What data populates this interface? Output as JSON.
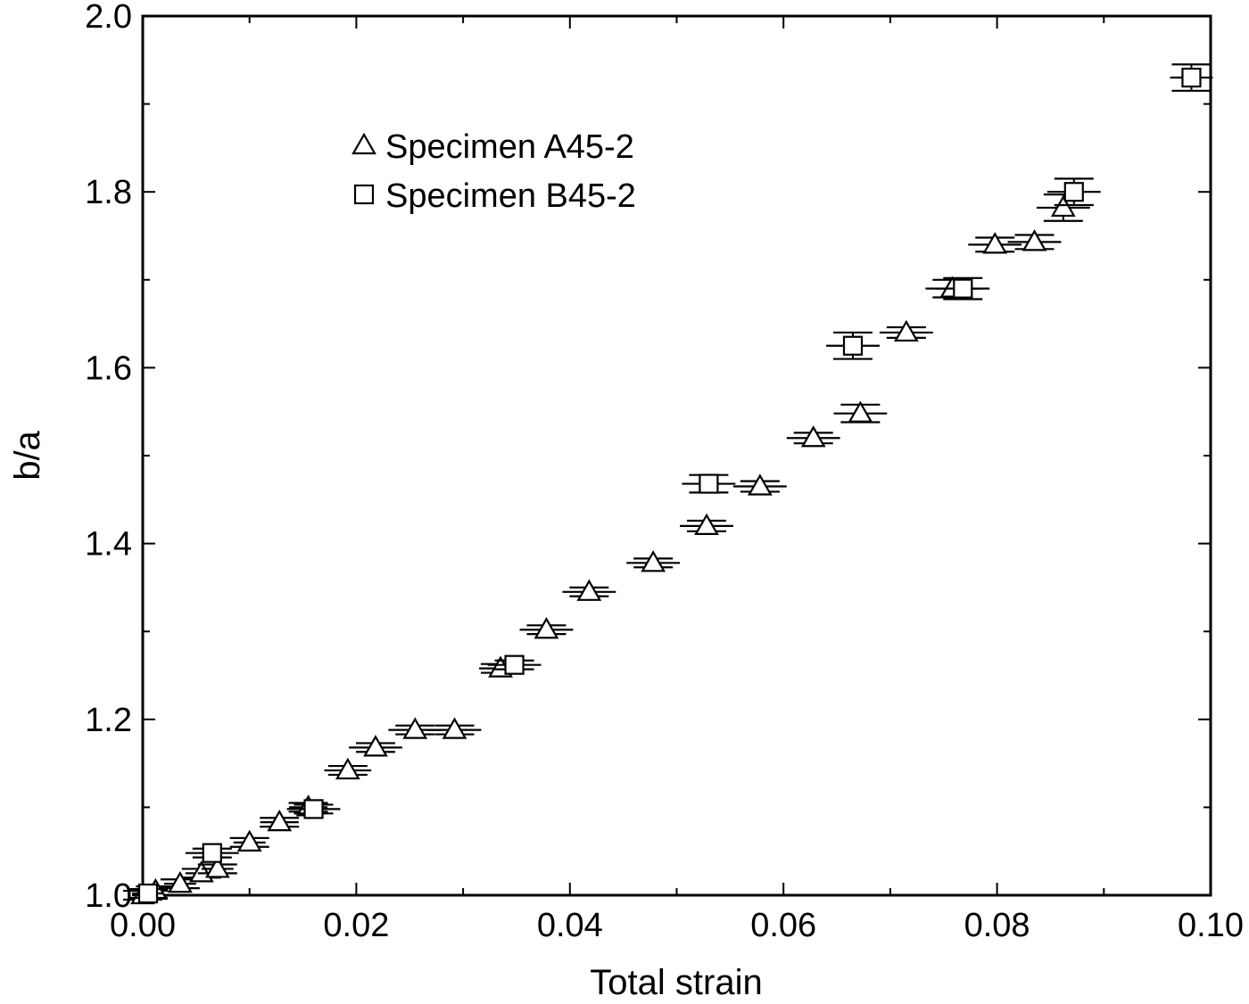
{
  "chart_data": {
    "type": "scatter",
    "title": "",
    "xlabel": "Total strain",
    "ylabel": "b/a",
    "xlim": [
      0.0,
      0.1
    ],
    "ylim": [
      1.0,
      2.0
    ],
    "x_ticks": [
      0.0,
      0.02,
      0.04,
      0.06,
      0.08,
      0.1
    ],
    "x_tick_labels": [
      "0.00",
      "0.02",
      "0.04",
      "0.06",
      "0.08",
      "0.10"
    ],
    "y_ticks": [
      1.0,
      1.2,
      1.4,
      1.6,
      1.8,
      2.0
    ],
    "y_tick_labels": [
      "1.0",
      "1.2",
      "1.4",
      "1.6",
      "1.8",
      "2.0"
    ],
    "grid": false,
    "legend_position": "top-left",
    "series": [
      {
        "name": "Specimen A45-2",
        "marker": "triangle",
        "points": [
          {
            "x": 0.0,
            "y": 1.0,
            "xerr": 0.001,
            "yerr": 0.005
          },
          {
            "x": 0.0012,
            "y": 1.005,
            "xerr": 0.0012,
            "yerr": 0.005
          },
          {
            "x": 0.0035,
            "y": 1.013,
            "xerr": 0.0015,
            "yerr": 0.005
          },
          {
            "x": 0.0055,
            "y": 1.025,
            "xerr": 0.0015,
            "yerr": 0.005
          },
          {
            "x": 0.007,
            "y": 1.03,
            "xerr": 0.0015,
            "yerr": 0.005
          },
          {
            "x": 0.01,
            "y": 1.06,
            "xerr": 0.0015,
            "yerr": 0.005
          },
          {
            "x": 0.0128,
            "y": 1.083,
            "xerr": 0.0018,
            "yerr": 0.005
          },
          {
            "x": 0.0155,
            "y": 1.1,
            "xerr": 0.0018,
            "yerr": 0.005
          },
          {
            "x": 0.0192,
            "y": 1.142,
            "xerr": 0.0022,
            "yerr": 0.005
          },
          {
            "x": 0.0218,
            "y": 1.168,
            "xerr": 0.0025,
            "yerr": 0.005
          },
          {
            "x": 0.0255,
            "y": 1.188,
            "xerr": 0.0025,
            "yerr": 0.005
          },
          {
            "x": 0.0292,
            "y": 1.188,
            "xerr": 0.0025,
            "yerr": 0.005
          },
          {
            "x": 0.0335,
            "y": 1.258,
            "xerr": 0.002,
            "yerr": 0.005
          },
          {
            "x": 0.0378,
            "y": 1.302,
            "xerr": 0.0025,
            "yerr": 0.005
          },
          {
            "x": 0.0418,
            "y": 1.345,
            "xerr": 0.0025,
            "yerr": 0.005
          },
          {
            "x": 0.0478,
            "y": 1.378,
            "xerr": 0.0025,
            "yerr": 0.005
          },
          {
            "x": 0.0528,
            "y": 1.42,
            "xerr": 0.0025,
            "yerr": 0.006
          },
          {
            "x": 0.0578,
            "y": 1.465,
            "xerr": 0.0025,
            "yerr": 0.006
          },
          {
            "x": 0.0628,
            "y": 1.52,
            "xerr": 0.0025,
            "yerr": 0.006
          },
          {
            "x": 0.0672,
            "y": 1.548,
            "xerr": 0.0025,
            "yerr": 0.01
          },
          {
            "x": 0.0715,
            "y": 1.64,
            "xerr": 0.0025,
            "yerr": 0.006
          },
          {
            "x": 0.0758,
            "y": 1.69,
            "xerr": 0.0025,
            "yerr": 0.01
          },
          {
            "x": 0.0798,
            "y": 1.74,
            "xerr": 0.0025,
            "yerr": 0.008
          },
          {
            "x": 0.0835,
            "y": 1.743,
            "xerr": 0.0025,
            "yerr": 0.008
          },
          {
            "x": 0.0862,
            "y": 1.782,
            "xerr": 0.0025,
            "yerr": 0.015
          }
        ]
      },
      {
        "name": "Specimen B45-2",
        "marker": "square",
        "points": [
          {
            "x": 0.0005,
            "y": 1.002,
            "xerr": 0.0015,
            "yerr": 0.005
          },
          {
            "x": 0.0065,
            "y": 1.048,
            "xerr": 0.0025,
            "yerr": 0.005
          },
          {
            "x": 0.016,
            "y": 1.098,
            "xerr": 0.0025,
            "yerr": 0.005
          },
          {
            "x": 0.0348,
            "y": 1.262,
            "xerr": 0.0025,
            "yerr": 0.005
          },
          {
            "x": 0.053,
            "y": 1.468,
            "xerr": 0.0025,
            "yerr": 0.01
          },
          {
            "x": 0.0665,
            "y": 1.625,
            "xerr": 0.0025,
            "yerr": 0.015
          },
          {
            "x": 0.0768,
            "y": 1.69,
            "xerr": 0.0025,
            "yerr": 0.012
          },
          {
            "x": 0.0872,
            "y": 1.8,
            "xerr": 0.0025,
            "yerr": 0.015
          },
          {
            "x": 0.0982,
            "y": 1.93,
            "xerr": 0.002,
            "yerr": 0.015
          }
        ]
      }
    ]
  }
}
